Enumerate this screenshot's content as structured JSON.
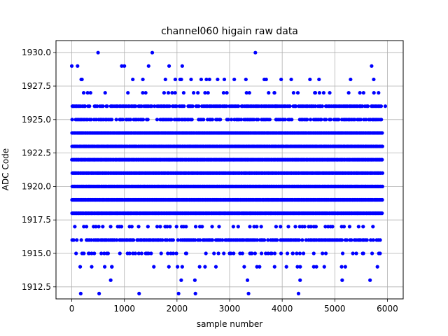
{
  "chart_data": {
    "type": "scatter",
    "title": "channel060 higain raw data",
    "xlabel": "sample number",
    "ylabel": "ADC Code",
    "xlim": [
      -300,
      6300
    ],
    "ylim": [
      1911.6,
      1930.9
    ],
    "x_ticks": [
      0,
      1000,
      2000,
      3000,
      4000,
      5000,
      6000
    ],
    "x_tick_labels": [
      "0",
      "1000",
      "2000",
      "3000",
      "4000",
      "5000",
      "6000"
    ],
    "y_ticks": [
      1912.5,
      1915.0,
      1917.5,
      1920.0,
      1922.5,
      1925.0,
      1927.5,
      1930.0
    ],
    "y_tick_labels": [
      "1912.5",
      "1915.0",
      "1917.5",
      "1920.0",
      "1922.5",
      "1925.0",
      "1927.5",
      "1930.0"
    ],
    "grid": true,
    "marker_color": "#0000ff",
    "sample_range": [
      0,
      5900
    ],
    "series": [
      {
        "x": [
          0,
          110,
          1000,
          1460,
          5700,
          180,
          1160,
          1780,
          2060,
          2560,
          2900,
          3310,
          3660,
          3980,
          5300,
          5740,
          20,
          80,
          120,
          1180,
          2230,
          2750,
          3600,
          3880,
          4250,
          4730,
          5480,
          5960,
          230,
          330,
          690,
          1060,
          1430,
          1930,
          2180,
          2550,
          3000,
          3420,
          3800,
          4200,
          4600,
          5150,
          5530,
          5860,
          500,
          950,
          1530,
          1850,
          3490,
          4620,
          2100,
          2460,
          3850,
          4700,
          1560,
          3520,
          4080,
          4600,
          4800,
          5200,
          160,
          760,
          2100,
          2430,
          2740,
          3570,
          4290,
          4650,
          5810,
          740,
          2080,
          2340,
          3340,
          4340,
          5140,
          5670,
          170,
          520,
          1280,
          2030,
          2350,
          3360,
          4310
        ],
        "y": [
          1929,
          1929,
          1929,
          1929,
          1929,
          1928,
          1928,
          1928,
          1928,
          1928,
          1928,
          1928,
          1928,
          1928,
          1928,
          1928,
          1926,
          1926,
          1926,
          1926,
          1926,
          1926,
          1926,
          1926,
          1926,
          1926,
          1926,
          1926,
          1915,
          1915,
          1915,
          1915,
          1915,
          1915,
          1915,
          1915,
          1915,
          1915,
          1915,
          1915,
          1915,
          1915,
          1915,
          1915,
          1930,
          1929,
          1930,
          1929,
          1930,
          1927,
          1929,
          1928,
          1927,
          1928,
          1914,
          1914,
          1914,
          1914,
          1914,
          1914,
          1914,
          1914,
          1914,
          1914,
          1914,
          1914,
          1914,
          1914,
          1914,
          1913,
          1913,
          1913,
          1913,
          1913,
          1913,
          1913,
          1912,
          1912,
          1912,
          1912,
          1912,
          1912,
          1912
        ]
      }
    ],
    "dense_levels": [
      1918,
      1919,
      1920,
      1921,
      1922,
      1923,
      1924
    ],
    "moderate_levels": [
      1916,
      1917,
      1925,
      1926,
      1927
    ],
    "sparse_levels": [
      1913,
      1914,
      1915,
      1928,
      1929
    ]
  }
}
